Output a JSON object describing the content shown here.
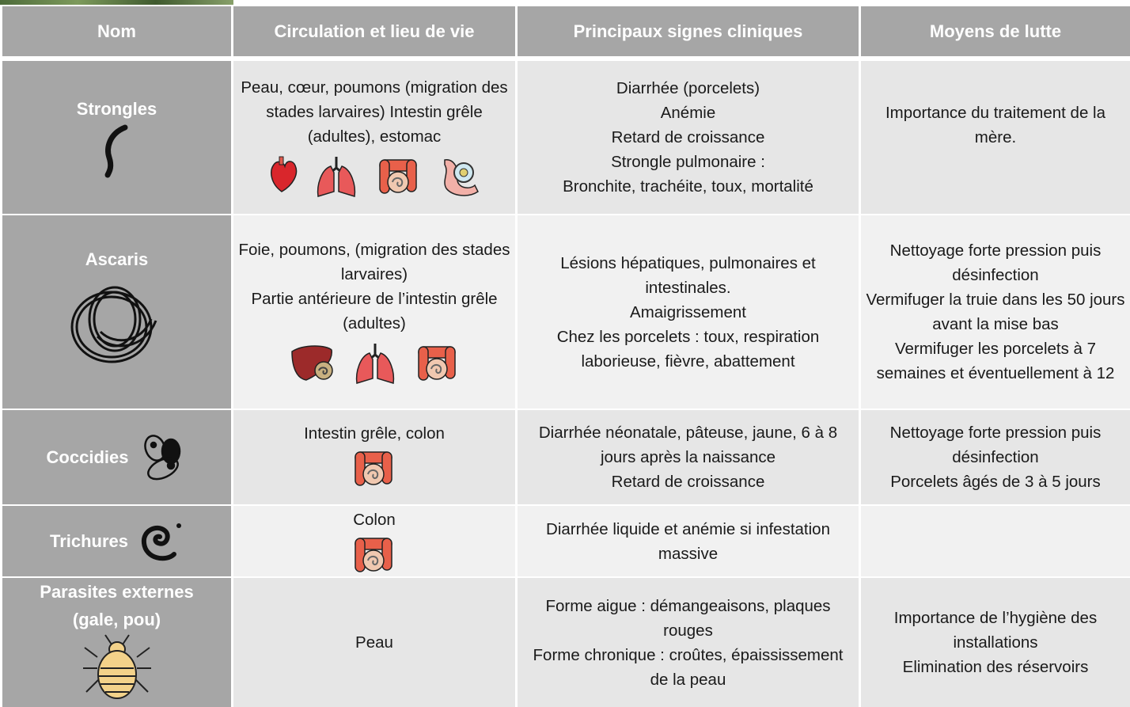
{
  "header": [
    "Nom",
    "Circulation et lieu de vie",
    "Principaux signes cliniques",
    "Moyens de lutte"
  ],
  "rows": [
    {
      "name": "Strongles",
      "circulation": [
        "Peau, cœur, poumons (migration des stades larvaires) Intestin grêle (adultes), estomac"
      ],
      "signs": [
        "Diarrhée (porcelets)",
        "Anémie",
        "Retard de croissance",
        "Strongle pulmonaire :",
        "Bronchite, trachéite, toux, mortalité"
      ],
      "control": [
        "Importance du traitement de la mère."
      ]
    },
    {
      "name": "Ascaris",
      "circulation": [
        "Foie, poumons, (migration des stades larvaires)",
        "Partie antérieure de l’intestin grêle (adultes)"
      ],
      "signs": [
        "Lésions hépatiques, pulmonaires et intestinales.",
        "Amaigrissement",
        "Chez les porcelets : toux, respiration laborieuse, fièvre, abattement"
      ],
      "control": [
        "Nettoyage forte pression puis désinfection",
        "Vermifuger la truie dans les 50 jours avant la mise bas",
        "Vermifuger les porcelets à 7 semaines et éventuellement à 12"
      ]
    },
    {
      "name": "Coccidies",
      "circulation": [
        "Intestin grêle, colon"
      ],
      "signs": [
        "Diarrhée néonatale, pâteuse, jaune, 6 à 8 jours après la naissance",
        "Retard de croissance"
      ],
      "control": [
        "Nettoyage forte pression puis désinfection",
        "Porcelets âgés de 3 à 5 jours"
      ]
    },
    {
      "name": "Trichures",
      "circulation": [
        "Colon"
      ],
      "signs": [
        "Diarrhée liquide et anémie si infestation massive"
      ]
    },
    {
      "name": "Parasites externes (gale, pou)",
      "circulation": [
        "Peau"
      ],
      "signs": [
        "Forme aigue : démangeaisons, plaques rouges",
        "Forme chronique : croûtes, épaississement de la peau"
      ],
      "control": [
        "Importance de l’hygiène des installations",
        "Elimination des réservoirs"
      ]
    }
  ]
}
